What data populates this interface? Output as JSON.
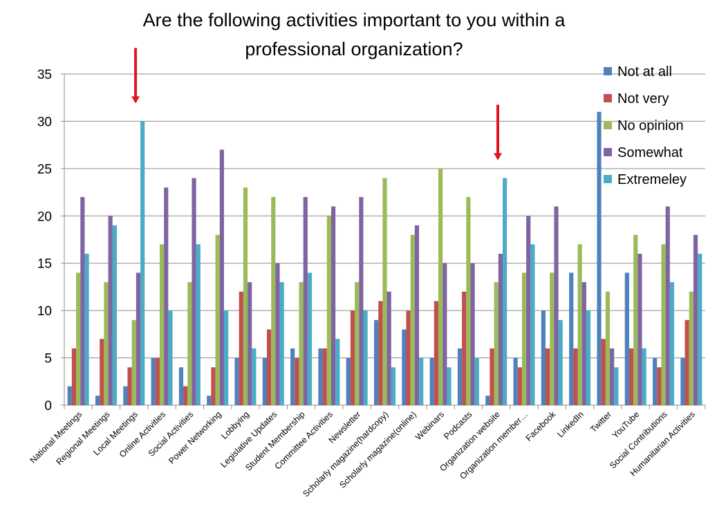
{
  "title_lines": [
    "Are the following activities important to you within a",
    "professional organization?"
  ],
  "chart_data": {
    "type": "bar",
    "title": "Are the following activities important to you within a professional organization?",
    "xlabel": "",
    "ylabel": "",
    "ylim": [
      0,
      35
    ],
    "yticks": [
      0,
      5,
      10,
      15,
      20,
      25,
      30,
      35
    ],
    "grid": true,
    "legend_position": "top-right",
    "categories": [
      "National Meetings",
      "Regional Meetings",
      "Local Meetings",
      "Online Activities",
      "Social Activities",
      "Power Networking",
      "Lobbying",
      "Legislative Updates",
      "Student Membership",
      "Committee Activities",
      "Newsletter",
      "Scholarly magazine(hardcopy)",
      "Scholarly magazine(online)",
      "Webinars",
      "Podcasts",
      "Organization website",
      "Organization member…",
      "Facebook",
      "LinkedIn",
      "Twitter",
      "YouTube",
      "Social Contributions",
      "Humanitarian Activities"
    ],
    "series": [
      {
        "name": "Not at all",
        "color": "#4F81BD",
        "values": [
          2,
          1,
          2,
          5,
          4,
          1,
          5,
          5,
          6,
          6,
          5,
          9,
          8,
          5,
          6,
          1,
          5,
          10,
          14,
          31,
          14,
          5,
          5
        ]
      },
      {
        "name": "Not very",
        "color": "#C0504D",
        "values": [
          6,
          7,
          4,
          5,
          2,
          4,
          12,
          8,
          5,
          6,
          10,
          11,
          10,
          11,
          12,
          6,
          4,
          6,
          6,
          7,
          6,
          4,
          9
        ]
      },
      {
        "name": "No opinion",
        "color": "#9BBB59",
        "values": [
          14,
          13,
          9,
          17,
          13,
          18,
          23,
          22,
          13,
          20,
          13,
          24,
          18,
          25,
          22,
          13,
          14,
          14,
          17,
          12,
          18,
          17,
          12
        ]
      },
      {
        "name": "Somewhat",
        "color": "#8064A2",
        "values": [
          22,
          20,
          14,
          23,
          24,
          27,
          13,
          15,
          22,
          21,
          22,
          12,
          19,
          15,
          15,
          16,
          20,
          21,
          13,
          6,
          16,
          21,
          18
        ]
      },
      {
        "name": "Extremeley",
        "color": "#4BACC6",
        "values": [
          16,
          19,
          30,
          10,
          17,
          10,
          6,
          13,
          14,
          7,
          10,
          4,
          5,
          4,
          5,
          24,
          17,
          9,
          10,
          4,
          6,
          13,
          16
        ]
      }
    ],
    "annotations": [
      {
        "type": "arrow",
        "color": "#E0141E",
        "target_category": "Local Meetings"
      },
      {
        "type": "arrow",
        "color": "#E0141E",
        "target_category": "Organization website"
      }
    ]
  }
}
